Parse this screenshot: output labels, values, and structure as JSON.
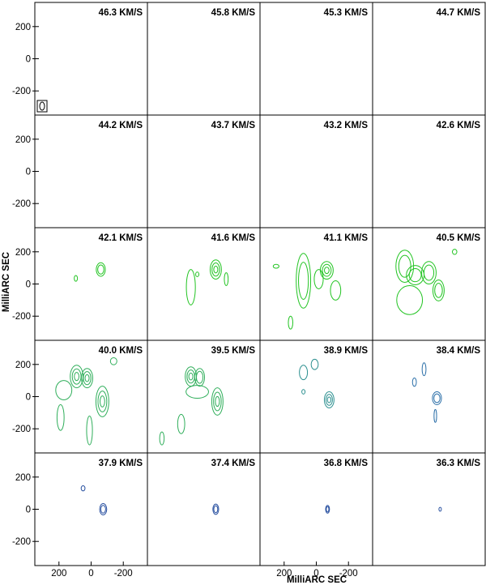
{
  "chart_data": {
    "type": "contour-channel-map",
    "ylabel": "MilliARC SEC",
    "xlabel": "MilliARC SEC",
    "x_ticks": [
      "200",
      "0",
      "-200"
    ],
    "y_ticks": [
      "200",
      "0",
      "-200"
    ],
    "xlim": [
      350,
      -350
    ],
    "ylim": [
      -350,
      350
    ],
    "columns": 4,
    "rows": 5,
    "velocity_unit": "KM/S",
    "panels": [
      {
        "label": "46.3 KM/S",
        "velocity": 46.3,
        "color": "#000000",
        "beam": true,
        "features": []
      },
      {
        "label": "45.8 KM/S",
        "velocity": 45.8,
        "color": "#000000",
        "features": []
      },
      {
        "label": "45.3 KM/S",
        "velocity": 45.3,
        "color": "#000000",
        "features": []
      },
      {
        "label": "44.7 KM/S",
        "velocity": 44.7,
        "color": "#000000",
        "features": []
      },
      {
        "label": "44.2 KM/S",
        "velocity": 44.2,
        "color": "#000000",
        "features": []
      },
      {
        "label": "43.7 KM/S",
        "velocity": 43.7,
        "color": "#000000",
        "features": []
      },
      {
        "label": "43.2 KM/S",
        "velocity": 43.2,
        "color": "#000000",
        "features": []
      },
      {
        "label": "42.6 KM/S",
        "velocity": 42.6,
        "color": "#000000",
        "features": []
      },
      {
        "label": "42.1 KM/S",
        "velocity": 42.1,
        "color": "#22c422",
        "features": [
          {
            "x": -60,
            "y": 90,
            "rx": 28,
            "ry": 42,
            "levels": 2
          },
          {
            "x": 95,
            "y": 35,
            "rx": 10,
            "ry": 18,
            "levels": 1
          }
        ]
      },
      {
        "label": "41.6 KM/S",
        "velocity": 41.6,
        "color": "#22c422",
        "features": [
          {
            "x": -75,
            "y": 90,
            "rx": 35,
            "ry": 60,
            "levels": 3
          },
          {
            "x": 80,
            "y": -20,
            "rx": 28,
            "ry": 110,
            "levels": 1
          },
          {
            "x": -140,
            "y": 30,
            "rx": 12,
            "ry": 40,
            "levels": 1
          },
          {
            "x": 40,
            "y": 60,
            "rx": 10,
            "ry": 14,
            "levels": 1
          }
        ]
      },
      {
        "label": "41.1 KM/S",
        "velocity": 41.1,
        "color": "#22c422",
        "features": [
          {
            "x": -65,
            "y": 85,
            "rx": 40,
            "ry": 55,
            "levels": 3
          },
          {
            "x": 80,
            "y": 20,
            "rx": 45,
            "ry": 170,
            "levels": 2
          },
          {
            "x": -120,
            "y": -40,
            "rx": 32,
            "ry": 60,
            "levels": 1
          },
          {
            "x": -15,
            "y": 30,
            "rx": 28,
            "ry": 60,
            "levels": 1
          },
          {
            "x": 250,
            "y": 110,
            "rx": 18,
            "ry": 12,
            "levels": 1
          },
          {
            "x": 160,
            "y": -240,
            "rx": 14,
            "ry": 40,
            "levels": 1
          }
        ]
      },
      {
        "label": "40.5 KM/S",
        "velocity": 40.5,
        "color": "#22c422",
        "features": [
          {
            "x": 150,
            "y": 110,
            "rx": 55,
            "ry": 100,
            "levels": 2
          },
          {
            "x": 85,
            "y": 55,
            "rx": 55,
            "ry": 60,
            "levels": 2
          },
          {
            "x": 0,
            "y": 70,
            "rx": 45,
            "ry": 70,
            "levels": 2
          },
          {
            "x": -60,
            "y": -40,
            "rx": 35,
            "ry": 65,
            "levels": 2
          },
          {
            "x": 120,
            "y": -100,
            "rx": 80,
            "ry": 90,
            "levels": 1
          },
          {
            "x": -160,
            "y": 200,
            "rx": 14,
            "ry": 16,
            "levels": 1
          }
        ]
      },
      {
        "label": "40.0 KM/S",
        "velocity": 40.0,
        "color": "#2fae5a",
        "features": [
          {
            "x": 90,
            "y": 125,
            "rx": 40,
            "ry": 70,
            "levels": 3
          },
          {
            "x": 25,
            "y": 115,
            "rx": 35,
            "ry": 60,
            "levels": 3
          },
          {
            "x": -70,
            "y": -30,
            "rx": 40,
            "ry": 95,
            "levels": 3
          },
          {
            "x": 170,
            "y": 40,
            "rx": 50,
            "ry": 60,
            "levels": 1
          },
          {
            "x": 190,
            "y": -130,
            "rx": 22,
            "ry": 80,
            "levels": 1
          },
          {
            "x": 10,
            "y": -210,
            "rx": 18,
            "ry": 90,
            "levels": 1
          },
          {
            "x": -140,
            "y": 220,
            "rx": 20,
            "ry": 22,
            "levels": 1
          }
        ]
      },
      {
        "label": "39.5 KM/S",
        "velocity": 39.5,
        "color": "#2fae5a",
        "features": [
          {
            "x": 80,
            "y": 125,
            "rx": 35,
            "ry": 60,
            "levels": 3
          },
          {
            "x": 25,
            "y": 120,
            "rx": 30,
            "ry": 55,
            "levels": 2
          },
          {
            "x": -85,
            "y": -30,
            "rx": 35,
            "ry": 85,
            "levels": 3
          },
          {
            "x": 40,
            "y": 30,
            "rx": 70,
            "ry": 40,
            "levels": 1
          },
          {
            "x": 140,
            "y": -170,
            "rx": 22,
            "ry": 60,
            "levels": 1
          },
          {
            "x": 260,
            "y": -260,
            "rx": 14,
            "ry": 40,
            "levels": 1
          }
        ]
      },
      {
        "label": "38.9 KM/S",
        "velocity": 38.9,
        "color": "#2b8f8f",
        "features": [
          {
            "x": -80,
            "y": -20,
            "rx": 30,
            "ry": 50,
            "levels": 3
          },
          {
            "x": 80,
            "y": 150,
            "rx": 25,
            "ry": 45,
            "levels": 1
          },
          {
            "x": 10,
            "y": 200,
            "rx": 22,
            "ry": 32,
            "levels": 1
          },
          {
            "x": 80,
            "y": 30,
            "rx": 10,
            "ry": 14,
            "levels": 1
          }
        ]
      },
      {
        "label": "38.4 KM/S",
        "velocity": 38.4,
        "color": "#2b6fa8",
        "features": [
          {
            "x": -50,
            "y": -10,
            "rx": 28,
            "ry": 40,
            "levels": 2
          },
          {
            "x": 30,
            "y": 170,
            "rx": 12,
            "ry": 40,
            "levels": 1
          },
          {
            "x": 90,
            "y": 90,
            "rx": 12,
            "ry": 26,
            "levels": 1
          },
          {
            "x": -40,
            "y": -120,
            "rx": 8,
            "ry": 40,
            "levels": 1
          }
        ]
      },
      {
        "label": "37.9 KM/S",
        "velocity": 37.9,
        "color": "#2850a0",
        "features": [
          {
            "x": -75,
            "y": 0,
            "rx": 22,
            "ry": 35,
            "levels": 2
          },
          {
            "x": 50,
            "y": 130,
            "rx": 12,
            "ry": 16,
            "levels": 1
          }
        ]
      },
      {
        "label": "37.4 KM/S",
        "velocity": 37.4,
        "color": "#2850a0",
        "features": [
          {
            "x": -75,
            "y": 0,
            "rx": 18,
            "ry": 32,
            "levels": 2
          }
        ]
      },
      {
        "label": "36.8 KM/S",
        "velocity": 36.8,
        "color": "#2850a0",
        "features": [
          {
            "x": -70,
            "y": 0,
            "rx": 12,
            "ry": 24,
            "levels": 2
          }
        ]
      },
      {
        "label": "36.3 KM/S",
        "velocity": 36.3,
        "color": "#2850a0",
        "features": [
          {
            "x": -70,
            "y": 0,
            "rx": 4,
            "ry": 12,
            "levels": 1
          }
        ]
      }
    ]
  }
}
